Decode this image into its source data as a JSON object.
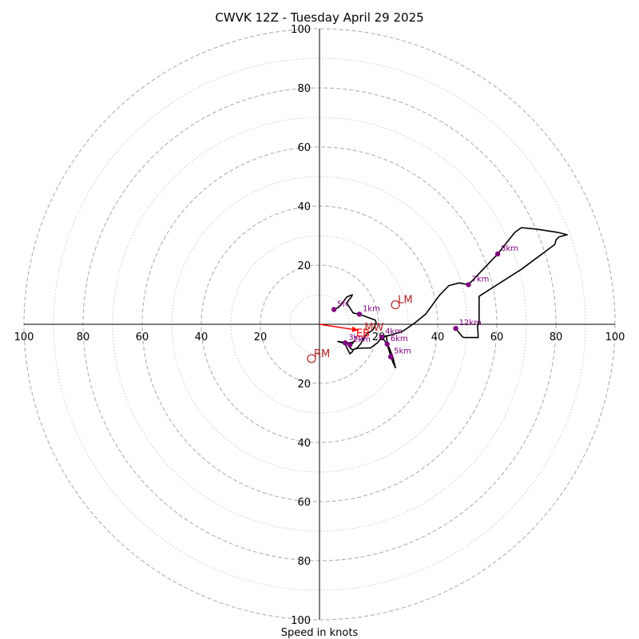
{
  "chart_data": {
    "type": "hodograph",
    "title": "CWVK 12Z - Tuesday April 29 2025",
    "xlabel": "Speed in knots",
    "max_speed": 100,
    "ring_major_step": 20,
    "ring_minor_step": 10,
    "tick_labels": [
      "20",
      "40",
      "60",
      "80",
      "100"
    ],
    "colors": {
      "trace": "#000000",
      "height_marker": "#800080",
      "motion": "#b22222",
      "shear_arrow": "#ff0000",
      "grid_major": "#b0b0b0",
      "grid_minor": "#c8c8c8",
      "axis": "#000000"
    },
    "trace": [
      [
        4.9,
        5.0
      ],
      [
        6.6,
        5.8
      ],
      [
        9.3,
        9.3
      ],
      [
        11.1,
        10.0
      ],
      [
        10.8,
        9.3
      ],
      [
        9.2,
        7.3
      ],
      [
        11.4,
        3.8
      ],
      [
        13.5,
        3.4
      ],
      [
        16.2,
        2.4
      ],
      [
        18.9,
        1.4
      ],
      [
        19.2,
        0.5
      ],
      [
        18.1,
        -1.9
      ],
      [
        16.0,
        -3.3
      ],
      [
        15.0,
        -4.5
      ],
      [
        14.0,
        -6.5
      ],
      [
        12.7,
        -8.0
      ],
      [
        11.6,
        -8.5
      ],
      [
        11.2,
        -9.2
      ],
      [
        10.3,
        -10.0
      ],
      [
        9.5,
        -8.4
      ],
      [
        8.6,
        -6.5
      ],
      [
        6.2,
        -5.8
      ],
      [
        9.7,
        -6.3
      ],
      [
        11.3,
        -6.1
      ],
      [
        11.9,
        -5.5
      ],
      [
        10.8,
        -6.9
      ],
      [
        10.3,
        -8.0
      ],
      [
        11.1,
        -8.6
      ],
      [
        13.0,
        -8.1
      ],
      [
        17.3,
        -8.0
      ],
      [
        19.7,
        -6.2
      ],
      [
        21.1,
        -4.3
      ],
      [
        22.7,
        -3.9
      ],
      [
        22.9,
        -6.7
      ],
      [
        24.1,
        -10.8
      ],
      [
        24.8,
        -12.8
      ],
      [
        25.7,
        -14.7
      ],
      [
        24.7,
        -10.7
      ],
      [
        23.4,
        -7.6
      ],
      [
        21.5,
        -4.8
      ],
      [
        22.3,
        -4.0
      ],
      [
        23.9,
        -3.7
      ],
      [
        28.1,
        -2.4
      ],
      [
        32.3,
        0.5
      ],
      [
        35.9,
        3.4
      ],
      [
        40.6,
        9.8
      ],
      [
        43.8,
        13.1
      ],
      [
        47.3,
        14.0
      ],
      [
        50.4,
        13.4
      ],
      [
        60.3,
        23.8
      ],
      [
        66.1,
        31.1
      ],
      [
        68.3,
        32.7
      ],
      [
        73.5,
        32.2
      ],
      [
        80.6,
        31.1
      ],
      [
        83.8,
        30.3
      ],
      [
        81.1,
        29.6
      ],
      [
        80.1,
        28.7
      ],
      [
        79.6,
        27.0
      ],
      [
        68.3,
        18.6
      ],
      [
        54.0,
        9.5
      ],
      [
        54.0,
        0.5
      ],
      [
        53.5,
        -0.5
      ],
      [
        53.7,
        -4.5
      ],
      [
        49.1,
        -4.5
      ],
      [
        48.4,
        -4.3
      ],
      [
        46.1,
        -1.4
      ]
    ],
    "height_markers": [
      {
        "label": "Sfc",
        "u": 4.9,
        "v": 5.0
      },
      {
        "label": "1km",
        "u": 13.5,
        "v": 3.4
      },
      {
        "label": "2km",
        "u": 10.3,
        "v": -7.0
      },
      {
        "label": "3km",
        "u": 8.7,
        "v": -6.3
      },
      {
        "label": "4km",
        "u": 21.1,
        "v": -4.3
      },
      {
        "label": "5km",
        "u": 24.1,
        "v": -11.0
      },
      {
        "label": "6km",
        "u": 22.9,
        "v": -6.7
      },
      {
        "label": "7km",
        "u": 50.4,
        "v": 13.4
      },
      {
        "label": "8km",
        "u": 60.3,
        "v": 23.8
      },
      {
        "label": "12km",
        "u": 46.1,
        "v": -1.4
      }
    ],
    "storm_motions": [
      {
        "label": "LM",
        "u": 25.7,
        "v": 6.6
      },
      {
        "label": "RM",
        "u": -2.7,
        "v": -11.6
      },
      {
        "label": "MW",
        "u": 14.4,
        "v": -2.7
      }
    ],
    "shear_arrow": {
      "label": "EB",
      "from": [
        0,
        0
      ],
      "to": [
        13.2,
        -2.0
      ]
    }
  }
}
